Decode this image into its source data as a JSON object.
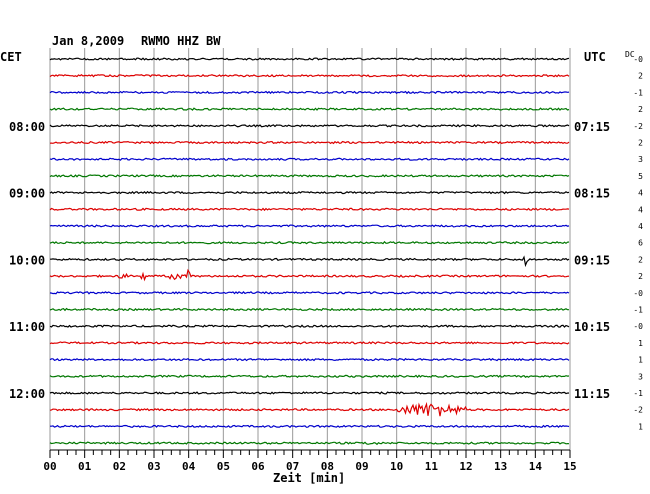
{
  "header": {
    "date": "Jan 8,2009",
    "station": "RWMO HHZ BW",
    "left_tz": "CET",
    "right_tz": "UTC",
    "dc_label": "DC"
  },
  "chart_data": {
    "type": "line",
    "title": "Jan 8,2009   RWMO HHZ BW",
    "xlabel": "Zeit [min]",
    "xlim": [
      0,
      15
    ],
    "x_ticks": [
      "00",
      "01",
      "02",
      "03",
      "04",
      "05",
      "06",
      "07",
      "08",
      "09",
      "10",
      "11",
      "12",
      "13",
      "14",
      "15"
    ],
    "trace_count": 24,
    "trace_interval_min": 15,
    "trace_colors": [
      "#000000",
      "#dd0000",
      "#0000cc",
      "#007700"
    ],
    "left_hour_labels": [
      {
        "trace": 4,
        "label": "08:00"
      },
      {
        "trace": 8,
        "label": "09:00"
      },
      {
        "trace": 12,
        "label": "10:00"
      },
      {
        "trace": 16,
        "label": "11:00"
      },
      {
        "trace": 20,
        "label": "12:00"
      }
    ],
    "right_hour_labels": [
      {
        "trace": 4,
        "label": "07:15"
      },
      {
        "trace": 8,
        "label": "08:15"
      },
      {
        "trace": 12,
        "label": "09:15"
      },
      {
        "trace": 16,
        "label": "10:15"
      },
      {
        "trace": 20,
        "label": "11:15"
      }
    ],
    "dc_offsets": [
      "-0",
      "2",
      "-1",
      "2",
      "-2",
      "2",
      "3",
      "5",
      "4",
      "4",
      "4",
      "6",
      "2",
      "2",
      "-0",
      "-1",
      "-0",
      "1",
      "1",
      "3",
      "-1",
      "-2",
      "1"
    ],
    "events": [
      {
        "trace": 13,
        "start_min": 1.9,
        "end_min": 2.3,
        "amplitude": 3
      },
      {
        "trace": 13,
        "start_min": 2.6,
        "end_min": 2.8,
        "amplitude": 5
      },
      {
        "trace": 13,
        "start_min": 3.4,
        "end_min": 3.9,
        "amplitude": 5
      },
      {
        "trace": 13,
        "start_min": 3.95,
        "end_min": 4.05,
        "amplitude": 10
      },
      {
        "trace": 12,
        "start_min": 13.65,
        "end_min": 13.8,
        "amplitude": 7
      },
      {
        "trace": 21,
        "start_min": 10.0,
        "end_min": 12.0,
        "amplitude": 8
      },
      {
        "trace": 23,
        "start_min": 8.9,
        "end_min": 9.6,
        "amplitude": 2
      }
    ]
  }
}
